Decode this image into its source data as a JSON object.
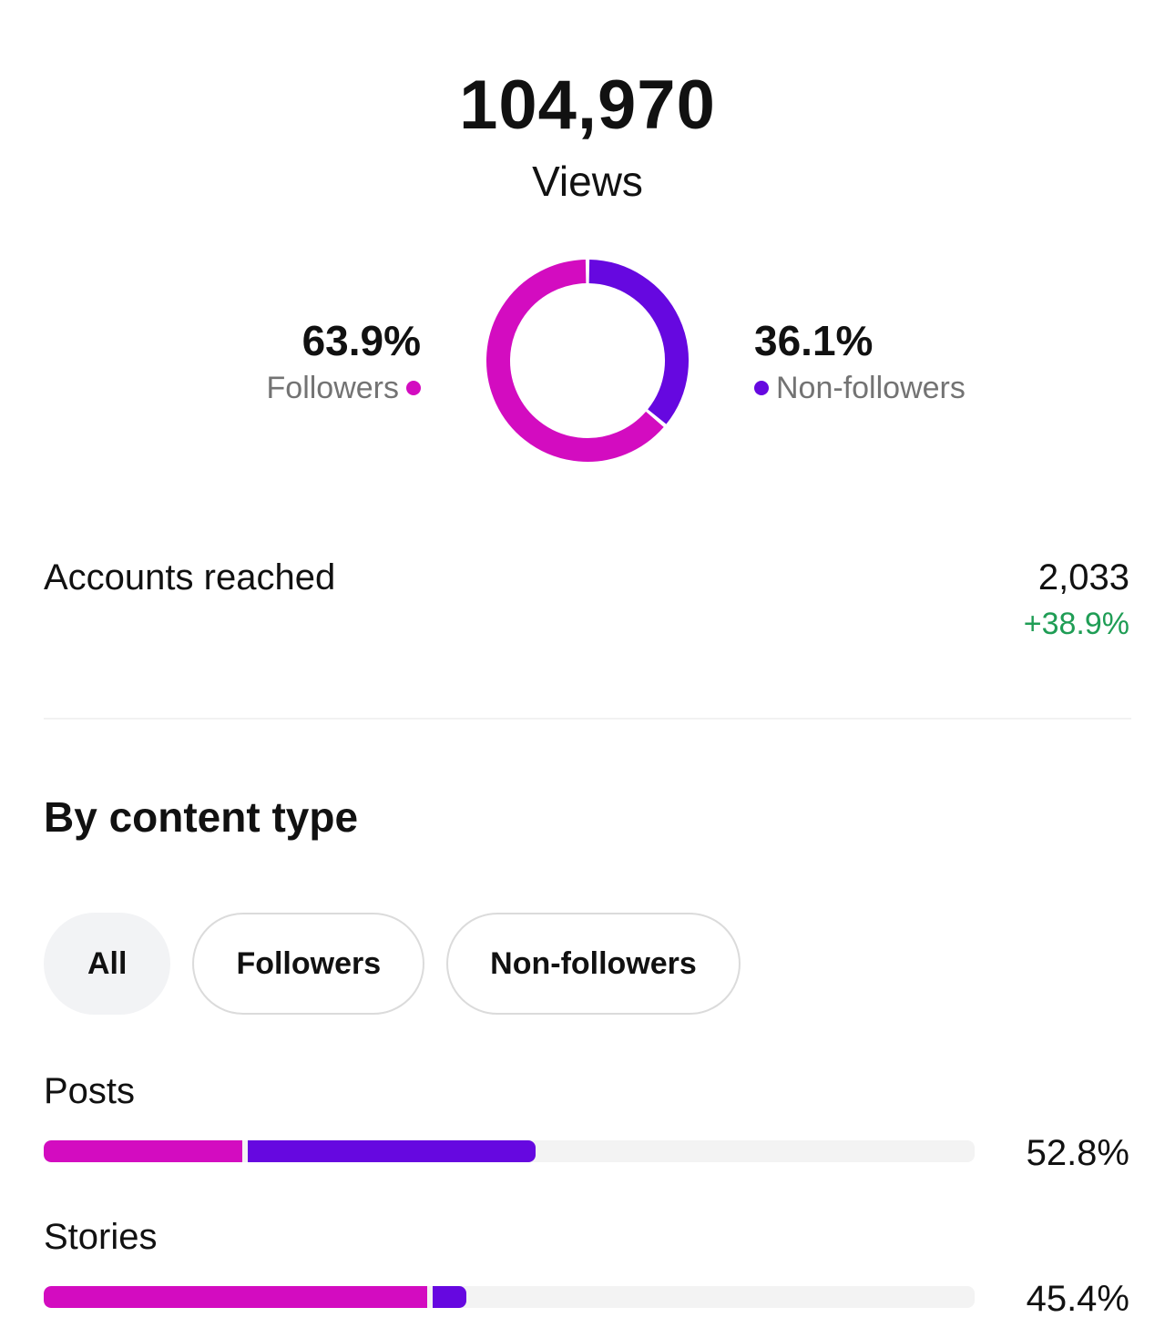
{
  "views": {
    "total": "104,970",
    "label": "Views"
  },
  "audience": {
    "followers": {
      "percent": "63.9%",
      "label": "Followers",
      "share": 63.9
    },
    "non_followers": {
      "percent": "36.1%",
      "label": "Non-followers",
      "share": 36.1
    }
  },
  "colors": {
    "followers": "#d30cc0",
    "non_followers": "#6608e0",
    "positive": "#1f9d55",
    "track": "#f3f3f3"
  },
  "accounts_reached": {
    "label": "Accounts reached",
    "value": "2,033",
    "change": "+38.9%"
  },
  "content_type": {
    "title": "By content type",
    "filters": [
      "All",
      "Followers",
      "Non-followers"
    ],
    "selected_filter": "All",
    "rows": [
      {
        "label": "Posts",
        "value": "52.8%",
        "followers_share": 21.6,
        "non_followers_share": 31.2
      },
      {
        "label": "Stories",
        "value": "45.4%",
        "followers_share": 41.5,
        "non_followers_share": 3.9
      }
    ]
  }
}
